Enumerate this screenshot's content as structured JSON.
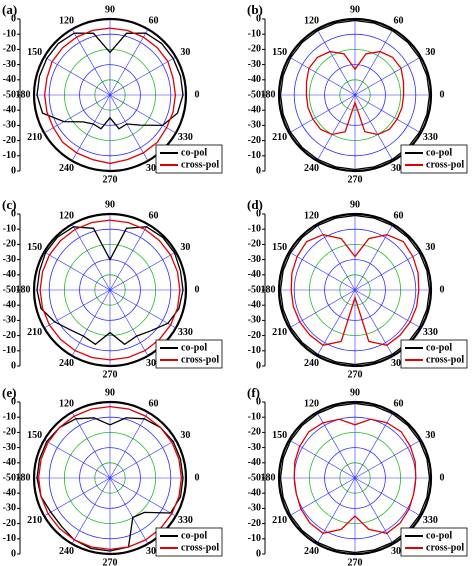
{
  "chart_data": [
    {
      "type": "polar",
      "label": "(a)",
      "rlim": [
        -50,
        0
      ],
      "rticks": [
        0,
        -10,
        -20,
        -30,
        -40,
        -50
      ],
      "angle_ticks": [
        0,
        30,
        60,
        90,
        120,
        150,
        180,
        210,
        240,
        270,
        300,
        330
      ],
      "x": [
        0,
        15,
        30,
        45,
        60,
        75,
        90,
        105,
        120,
        135,
        150,
        165,
        180,
        195,
        210,
        225,
        240,
        255,
        270,
        285,
        300,
        315,
        330,
        345
      ],
      "series": [
        {
          "name": "co-pol",
          "color": "#000000",
          "values": [
            -2,
            -2,
            -2,
            -2,
            -3,
            -8,
            -22,
            -8,
            -3,
            -2,
            -2,
            -2,
            -2,
            -4,
            -15,
            -25,
            -28,
            -27,
            -35,
            -27,
            -28,
            -22,
            -10,
            -4
          ]
        },
        {
          "name": "cross-pol",
          "color": "#e00000",
          "values": [
            -7,
            -7,
            -6,
            -6,
            -6,
            -6,
            -6,
            -6,
            -6,
            -6,
            -6,
            -7,
            -7,
            -7,
            -7,
            -6,
            -6,
            -6,
            -5,
            -6,
            -6,
            -6,
            -7,
            -7
          ]
        }
      ]
    },
    {
      "type": "polar",
      "label": "(b)",
      "rlim": [
        -50,
        0
      ],
      "rticks": [
        0,
        -10,
        -20,
        -30,
        -40,
        -50
      ],
      "angle_ticks": [
        0,
        30,
        60,
        90,
        120,
        150,
        180,
        210,
        240,
        270,
        300,
        330
      ],
      "x": [
        0,
        15,
        30,
        45,
        60,
        75,
        90,
        105,
        120,
        135,
        150,
        165,
        180,
        195,
        210,
        225,
        240,
        255,
        270,
        285,
        300,
        315,
        330,
        345
      ],
      "series": [
        {
          "name": "co-pol",
          "color": "#000000",
          "values": [
            -1,
            -1,
            -1,
            -1,
            -1,
            -1,
            -1,
            -1,
            -1,
            -1,
            -1,
            -1,
            -1,
            -1,
            -1,
            -1,
            -1,
            -1,
            -1,
            -1,
            -1,
            -1,
            -1,
            -1
          ]
        },
        {
          "name": "cross-pol",
          "color": "#e00000",
          "values": [
            -18,
            -17,
            -15,
            -15,
            -17,
            -22,
            -33,
            -22,
            -17,
            -15,
            -15,
            -17,
            -18,
            -18,
            -18,
            -18,
            -20,
            -25,
            -45,
            -25,
            -20,
            -18,
            -18,
            -18
          ]
        }
      ]
    },
    {
      "type": "polar",
      "label": "(c)",
      "rlim": [
        -50,
        0
      ],
      "rticks": [
        0,
        -10,
        -20,
        -30,
        -40,
        -50
      ],
      "angle_ticks": [
        0,
        30,
        60,
        90,
        120,
        150,
        180,
        210,
        240,
        270,
        300,
        330
      ],
      "x": [
        0,
        15,
        30,
        45,
        60,
        75,
        90,
        105,
        120,
        135,
        150,
        165,
        180,
        195,
        210,
        225,
        240,
        255,
        270,
        285,
        300,
        315,
        330,
        345
      ],
      "series": [
        {
          "name": "co-pol",
          "color": "#000000",
          "values": [
            -2,
            -2,
            -1,
            -1,
            -2,
            -8,
            -30,
            -8,
            -2,
            -1,
            -1,
            -2,
            -2,
            -3,
            -8,
            -13,
            -15,
            -13,
            -22,
            -13,
            -15,
            -12,
            -6,
            -3
          ]
        },
        {
          "name": "cross-pol",
          "color": "#e00000",
          "values": [
            -4,
            -4,
            -4,
            -4,
            -4,
            -4,
            -4,
            -4,
            -4,
            -4,
            -4,
            -4,
            -4,
            -4,
            -4,
            -4,
            -4,
            -4,
            -4,
            -4,
            -4,
            -4,
            -4,
            -4
          ]
        }
      ]
    },
    {
      "type": "polar",
      "label": "(d)",
      "rlim": [
        -50,
        0
      ],
      "rticks": [
        0,
        -10,
        -20,
        -30,
        -40,
        -50
      ],
      "angle_ticks": [
        0,
        30,
        60,
        90,
        120,
        150,
        180,
        210,
        240,
        270,
        300,
        330
      ],
      "x": [
        0,
        15,
        30,
        45,
        60,
        75,
        90,
        105,
        120,
        135,
        150,
        165,
        180,
        195,
        210,
        225,
        240,
        255,
        270,
        285,
        300,
        315,
        330,
        345
      ],
      "series": [
        {
          "name": "co-pol",
          "color": "#000000",
          "values": [
            -1,
            -1,
            -1,
            -1,
            -1,
            -1,
            -1,
            -1,
            -1,
            -1,
            -1,
            -1,
            -1,
            -1,
            -1,
            -1,
            -1,
            -1,
            -1,
            -1,
            -1,
            -1,
            -1,
            -1
          ]
        },
        {
          "name": "cross-pol",
          "color": "#e00000",
          "values": [
            -8,
            -7,
            -6,
            -5,
            -8,
            -15,
            -28,
            -15,
            -8,
            -5,
            -6,
            -7,
            -8,
            -8,
            -8,
            -8,
            -8,
            -15,
            -45,
            -15,
            -8,
            -8,
            -8,
            -8
          ]
        }
      ]
    },
    {
      "type": "polar",
      "label": "(e)",
      "rlim": [
        -50,
        0
      ],
      "rticks": [
        0,
        -10,
        -20,
        -30,
        -40,
        -50
      ],
      "angle_ticks": [
        0,
        30,
        60,
        90,
        120,
        150,
        180,
        210,
        240,
        270,
        300,
        330
      ],
      "x": [
        0,
        15,
        30,
        45,
        60,
        75,
        90,
        105,
        120,
        135,
        150,
        165,
        180,
        195,
        210,
        225,
        240,
        255,
        270,
        285,
        300,
        315,
        330,
        345
      ],
      "series": [
        {
          "name": "co-pol",
          "color": "#000000",
          "values": [
            -2,
            -2,
            -2,
            -3,
            -5,
            -9,
            -15,
            -9,
            -5,
            -3,
            -2,
            -2,
            -2,
            -3,
            -5,
            -5,
            -3,
            -2,
            -2,
            -3,
            -20,
            -18,
            -4,
            -2
          ]
        },
        {
          "name": "cross-pol",
          "color": "#e00000",
          "values": [
            -3,
            -3,
            -3,
            -3,
            -3,
            -3,
            -3,
            -3,
            -3,
            -3,
            -3,
            -3,
            -3,
            -3,
            -3,
            -3,
            -3,
            -3,
            -3,
            -3,
            -3,
            -3,
            -3,
            -3
          ]
        }
      ]
    },
    {
      "type": "polar",
      "label": "(f)",
      "rlim": [
        -50,
        0
      ],
      "rticks": [
        0,
        -10,
        -20,
        -30,
        -40,
        -50
      ],
      "angle_ticks": [
        0,
        30,
        60,
        90,
        120,
        150,
        180,
        210,
        240,
        270,
        300,
        330
      ],
      "x": [
        0,
        15,
        30,
        45,
        60,
        75,
        90,
        105,
        120,
        135,
        150,
        165,
        180,
        195,
        210,
        225,
        240,
        255,
        270,
        285,
        300,
        315,
        330,
        345
      ],
      "series": [
        {
          "name": "co-pol",
          "color": "#000000",
          "values": [
            -1,
            -1,
            -1,
            -1,
            -1,
            -1,
            -1,
            -1,
            -1,
            -1,
            -1,
            -1,
            -1,
            -1,
            -1,
            -1,
            -1,
            -1,
            -1,
            -1,
            -1,
            -1,
            -1,
            -1
          ]
        },
        {
          "name": "cross-pol",
          "color": "#e00000",
          "values": [
            -10,
            -9,
            -8,
            -7,
            -8,
            -10,
            -15,
            -10,
            -8,
            -7,
            -8,
            -9,
            -10,
            -10,
            -9,
            -8,
            -8,
            -15,
            -25,
            -15,
            -8,
            -8,
            -9,
            -10
          ]
        }
      ]
    }
  ]
}
